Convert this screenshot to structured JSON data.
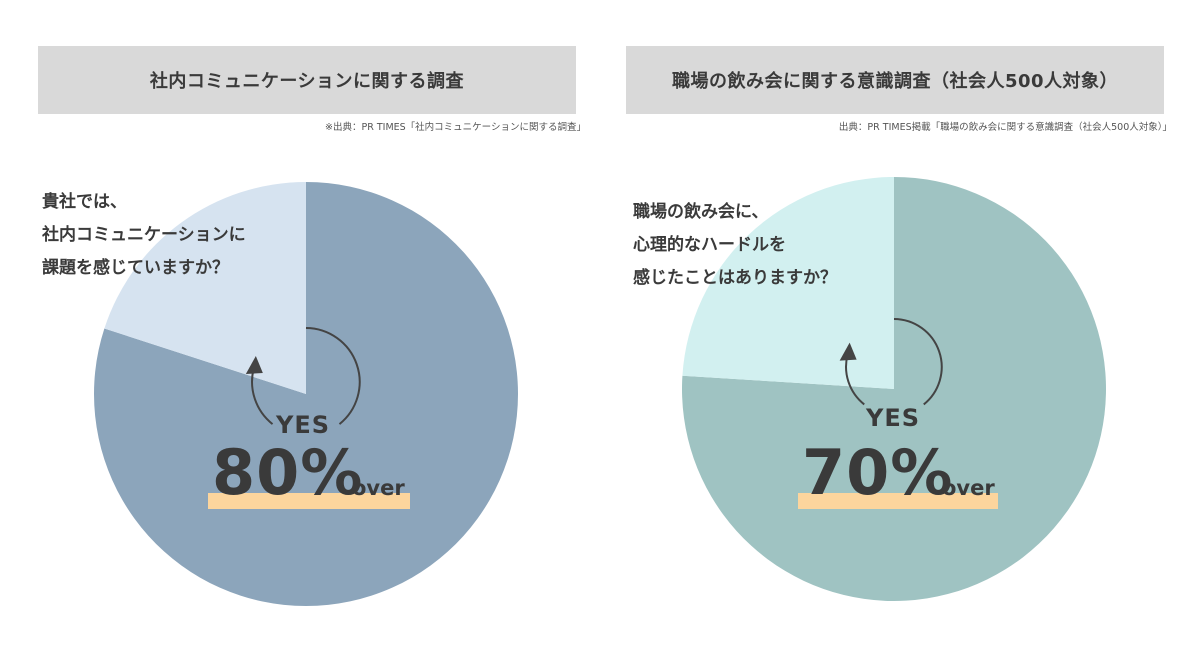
{
  "chart_data": [
    {
      "type": "pie",
      "title": "社内コミュニケーションに関する調査",
      "source": "※出典：PR TIMES「社内コミュニケーションに関する調査」",
      "question_lines": [
        "貴社では、",
        "社内コミュニケーションに",
        "課題を感じていますか？"
      ],
      "yes_label": "YES",
      "headline_value": "80%",
      "headline_suffix": "over",
      "slices": [
        {
          "label": "YES",
          "value": 80,
          "color": "#8ca5bb"
        },
        {
          "label": "",
          "value": 20,
          "color": "#d6e3f0"
        }
      ]
    },
    {
      "type": "pie",
      "title": "職場の飲み会に関する意識調査（社会人500人対象）",
      "source": "出典：PR TIMES掲載「職場の飲み会に関する意識調査（社会人500人対象）」",
      "question_lines": [
        "職場の飲み会に、",
        "心理的なハードルを",
        "感じたことはありますか？"
      ],
      "yes_label": "YES",
      "headline_value": "70%",
      "headline_suffix": "over",
      "slices": [
        {
          "label": "YES",
          "value": 76,
          "color": "#9fc3c2"
        },
        {
          "label": "",
          "value": 24,
          "color": "#d2f0f0"
        }
      ]
    }
  ]
}
